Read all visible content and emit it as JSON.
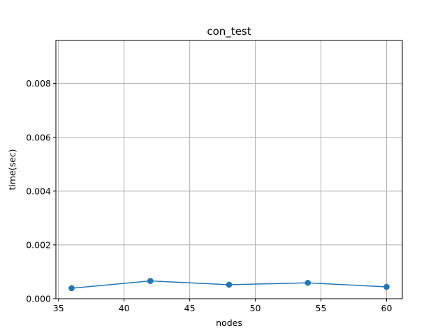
{
  "chart_data": {
    "type": "line",
    "title": "con_test",
    "xlabel": "nodes",
    "ylabel": "time(sec)",
    "x": [
      36,
      42,
      48,
      54,
      60
    ],
    "series": [
      {
        "values": [
          0.00039,
          0.00066,
          0.00052,
          0.00059,
          0.00044
        ],
        "color": "#1f77b4",
        "marker": "circle"
      }
    ],
    "xlim": [
      34.8,
      61.2
    ],
    "ylim": [
      0.0,
      0.0096
    ],
    "xticks": [
      35,
      40,
      45,
      50,
      55,
      60
    ],
    "xtick_labels": [
      "35",
      "40",
      "45",
      "50",
      "55",
      "60"
    ],
    "yticks": [
      0.0,
      0.002,
      0.004,
      0.006,
      0.008
    ],
    "ytick_labels": [
      "0.000",
      "0.002",
      "0.004",
      "0.006",
      "0.008"
    ],
    "grid": true
  }
}
